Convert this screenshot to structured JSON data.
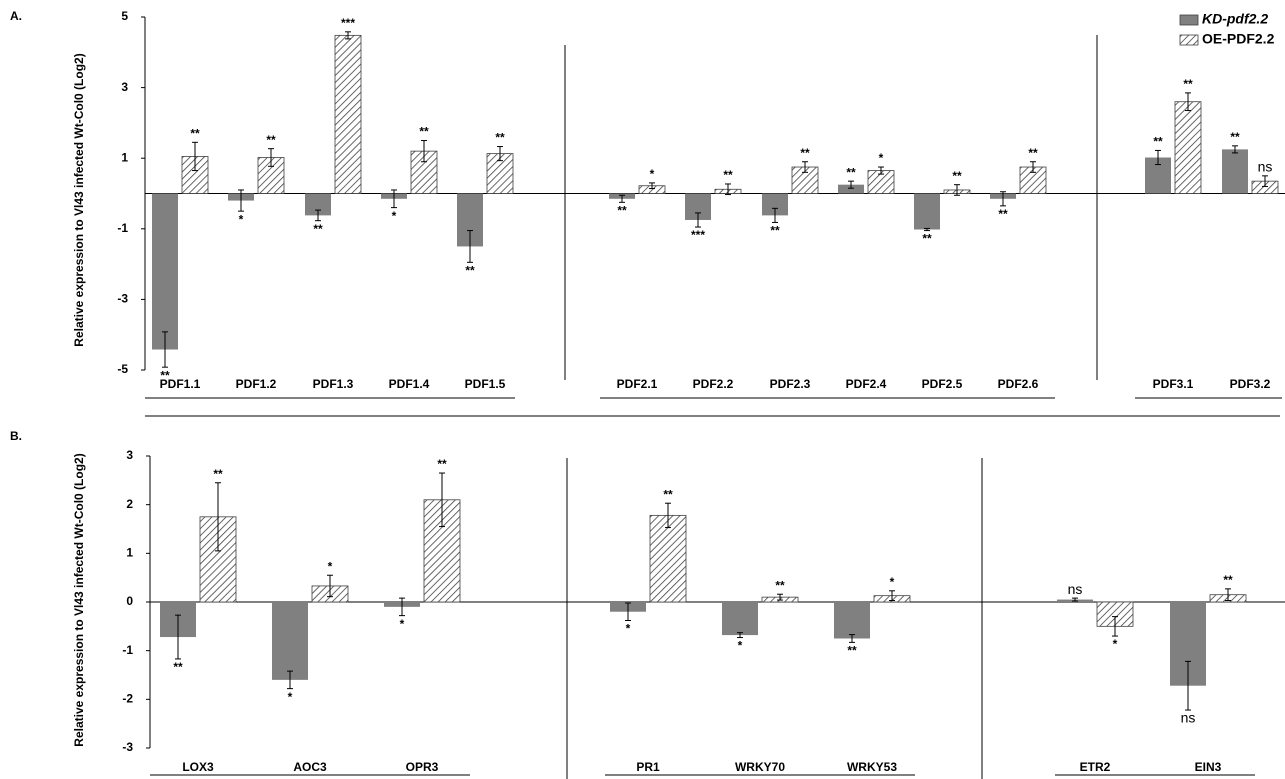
{
  "chart_data": [
    {
      "type": "bar",
      "panel": "A.",
      "ylabel": "Relative expression to Vl43 infected Wt-Col0 (Log2)",
      "categories": [
        "PDF1.1",
        "PDF1.2",
        "PDF1.3",
        "PDF1.4",
        "PDF1.5",
        "PDF2.1",
        "PDF2.2",
        "PDF2.3",
        "PDF2.4",
        "PDF2.5",
        "PDF2.6",
        "PDF3.1",
        "PDF3.2"
      ],
      "ylim": [
        -5,
        5
      ],
      "yticks": [
        -5,
        -3,
        -1,
        1,
        3,
        5
      ],
      "legend": "upper right",
      "series": [
        {
          "name": "KD-pdf2.2",
          "color": "#808080",
          "pattern": "solid",
          "values": [
            -4.42,
            -0.2,
            -0.62,
            -0.15,
            -1.5,
            -0.15,
            -0.75,
            -0.62,
            0.25,
            -1.02,
            -0.15,
            1.02,
            1.25
          ],
          "errors": [
            0.5,
            0.3,
            0.15,
            0.25,
            0.45,
            0.1,
            0.2,
            0.2,
            0.1,
            0.03,
            0.2,
            0.2,
            0.1
          ],
          "significance": [
            "**",
            "*",
            "**",
            "*",
            "**",
            "**",
            "***",
            "**",
            "**",
            "**",
            "**",
            "**",
            "**"
          ]
        },
        {
          "name": "OE-PDF2.2",
          "color": "#404040",
          "pattern": "hatch",
          "values": [
            1.05,
            1.02,
            4.48,
            1.2,
            1.13,
            0.22,
            0.12,
            0.75,
            0.65,
            0.1,
            0.75,
            2.6,
            0.35
          ],
          "errors": [
            0.4,
            0.25,
            0.1,
            0.3,
            0.2,
            0.08,
            0.15,
            0.15,
            0.1,
            0.15,
            0.15,
            0.25,
            0.15
          ],
          "significance": [
            "**",
            "**",
            "***",
            "**",
            "**",
            "*",
            "**",
            "**",
            "*",
            "**",
            "**",
            "**",
            "ns"
          ]
        }
      ]
    },
    {
      "type": "bar",
      "panel": "B.",
      "ylabel": "Relative expression to Vl43 infected Wt-Col0 (Log2)",
      "categories": [
        "LOX3",
        "AOC3",
        "OPR3",
        "PR1",
        "WRKY70",
        "WRKY53",
        "ETR2",
        "EIN3"
      ],
      "ylim": [
        -3,
        3
      ],
      "yticks": [
        -3,
        -2,
        -1,
        0,
        1,
        2,
        3
      ],
      "series": [
        {
          "name": "KD-pdf2.2",
          "color": "#808080",
          "pattern": "solid",
          "values": [
            -0.72,
            -1.6,
            -0.1,
            -0.2,
            -0.68,
            -0.75,
            0.05,
            -1.72
          ],
          "errors": [
            0.45,
            0.18,
            0.18,
            0.18,
            0.05,
            0.08,
            0.03,
            0.5
          ],
          "significance": [
            "**",
            "*",
            "*",
            "*",
            "*",
            "**",
            "ns",
            "ns"
          ]
        },
        {
          "name": "OE-PDF2.2",
          "color": "#404040",
          "pattern": "hatch",
          "values": [
            1.75,
            0.33,
            2.1,
            1.78,
            0.1,
            0.13,
            -0.5,
            0.15
          ],
          "errors": [
            0.7,
            0.22,
            0.55,
            0.25,
            0.06,
            0.1,
            0.2,
            0.12
          ],
          "significance": [
            "**",
            "*",
            "**",
            "**",
            "**",
            "*",
            "*",
            "**"
          ]
        }
      ]
    }
  ]
}
